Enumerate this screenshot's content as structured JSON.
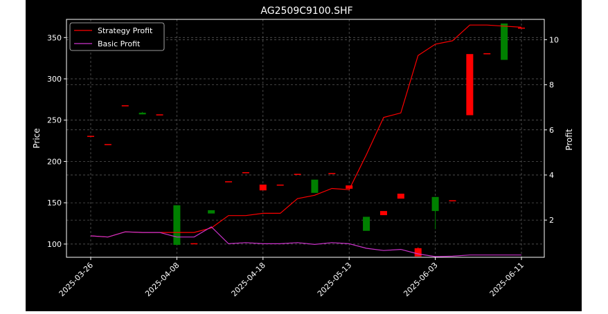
{
  "chart_data": {
    "type": "candlestick+line",
    "title": "AG2509C9100.SHF",
    "ylabel_left": "Price",
    "ylabel_right": "Profit",
    "xlabel": "",
    "y_left_lim": [
      84,
      372
    ],
    "y_right_lim": [
      0.35,
      10.9
    ],
    "y_left_ticks": [
      100,
      150,
      200,
      250,
      300,
      350
    ],
    "y_right_ticks": [
      2,
      4,
      6,
      8,
      10
    ],
    "x_ticks": [
      {
        "label": "2025-03-26",
        "index": 0
      },
      {
        "label": "2025-04-08",
        "index": 5
      },
      {
        "label": "2025-04-18",
        "index": 10
      },
      {
        "label": "2025-05-13",
        "index": 15
      },
      {
        "label": "2025-06-03",
        "index": 20
      },
      {
        "label": "2025-06-11",
        "index": 25
      }
    ],
    "grid": true,
    "legend_position": "top-left",
    "candles": [
      {
        "o": 231,
        "c": 230,
        "h": 231,
        "l": 230
      },
      {
        "o": 221,
        "c": 220,
        "h": 221,
        "l": 220
      },
      {
        "o": 268,
        "c": 267,
        "h": 268,
        "l": 267
      },
      {
        "o": 257,
        "c": 259,
        "h": 260,
        "l": 257
      },
      {
        "o": 257,
        "c": 256,
        "h": 257,
        "l": 256
      },
      {
        "o": 99,
        "c": 147,
        "h": 147,
        "l": 99
      },
      {
        "o": 101,
        "c": 100,
        "h": 101,
        "l": 100
      },
      {
        "o": 137,
        "c": 141,
        "h": 141,
        "l": 137
      },
      {
        "o": 176,
        "c": 175,
        "h": 176,
        "l": 175
      },
      {
        "o": 187,
        "c": 186,
        "h": 187,
        "l": 186
      },
      {
        "o": 172,
        "c": 165,
        "h": 172,
        "l": 165
      },
      {
        "o": 172,
        "c": 171,
        "h": 172,
        "l": 171
      },
      {
        "o": 185,
        "c": 184,
        "h": 185,
        "l": 184
      },
      {
        "o": 162,
        "c": 178,
        "h": 178,
        "l": 162
      },
      {
        "o": 186,
        "c": 185,
        "h": 186,
        "l": 185
      },
      {
        "o": 171,
        "c": 167,
        "h": 171,
        "l": 167
      },
      {
        "o": 116,
        "c": 133,
        "h": 133,
        "l": 116
      },
      {
        "o": 140,
        "c": 135,
        "h": 140,
        "l": 135
      },
      {
        "o": 161,
        "c": 155,
        "h": 161,
        "l": 155
      },
      {
        "o": 95,
        "c": 85,
        "h": 96,
        "l": 85
      },
      {
        "o": 140,
        "c": 157,
        "h": 157,
        "l": 118
      },
      {
        "o": 153,
        "c": 152,
        "h": 153,
        "l": 152
      },
      {
        "o": 330,
        "c": 256,
        "h": 330,
        "l": 256
      },
      {
        "o": 331,
        "c": 330,
        "h": 331,
        "l": 330
      },
      {
        "o": 323,
        "c": 367,
        "h": 367,
        "l": 323
      },
      {
        "o": 362,
        "c": 361,
        "h": 362,
        "l": 361
      }
    ],
    "series": [
      {
        "name": "Strategy Profit",
        "color": "#ff0000",
        "axis": "right",
        "values": [
          1.3,
          1.25,
          1.48,
          1.45,
          1.45,
          1.45,
          1.45,
          1.65,
          2.2,
          2.2,
          2.3,
          2.3,
          2.95,
          3.1,
          3.4,
          3.35,
          4.9,
          6.55,
          6.75,
          9.3,
          9.8,
          9.95,
          10.65,
          10.65,
          10.6,
          10.55
        ]
      },
      {
        "name": "Basic Profit",
        "color": "#cc33cc",
        "axis": "right",
        "values": [
          1.3,
          1.25,
          1.48,
          1.45,
          1.45,
          1.25,
          1.25,
          1.7,
          0.95,
          1.0,
          0.95,
          0.95,
          1.0,
          0.92,
          1.0,
          0.95,
          0.75,
          0.65,
          0.7,
          0.5,
          0.38,
          0.4,
          0.45,
          0.45,
          0.45,
          0.45
        ]
      }
    ],
    "candle_colors": {
      "up": "#008000",
      "down": "#ff0000"
    }
  }
}
